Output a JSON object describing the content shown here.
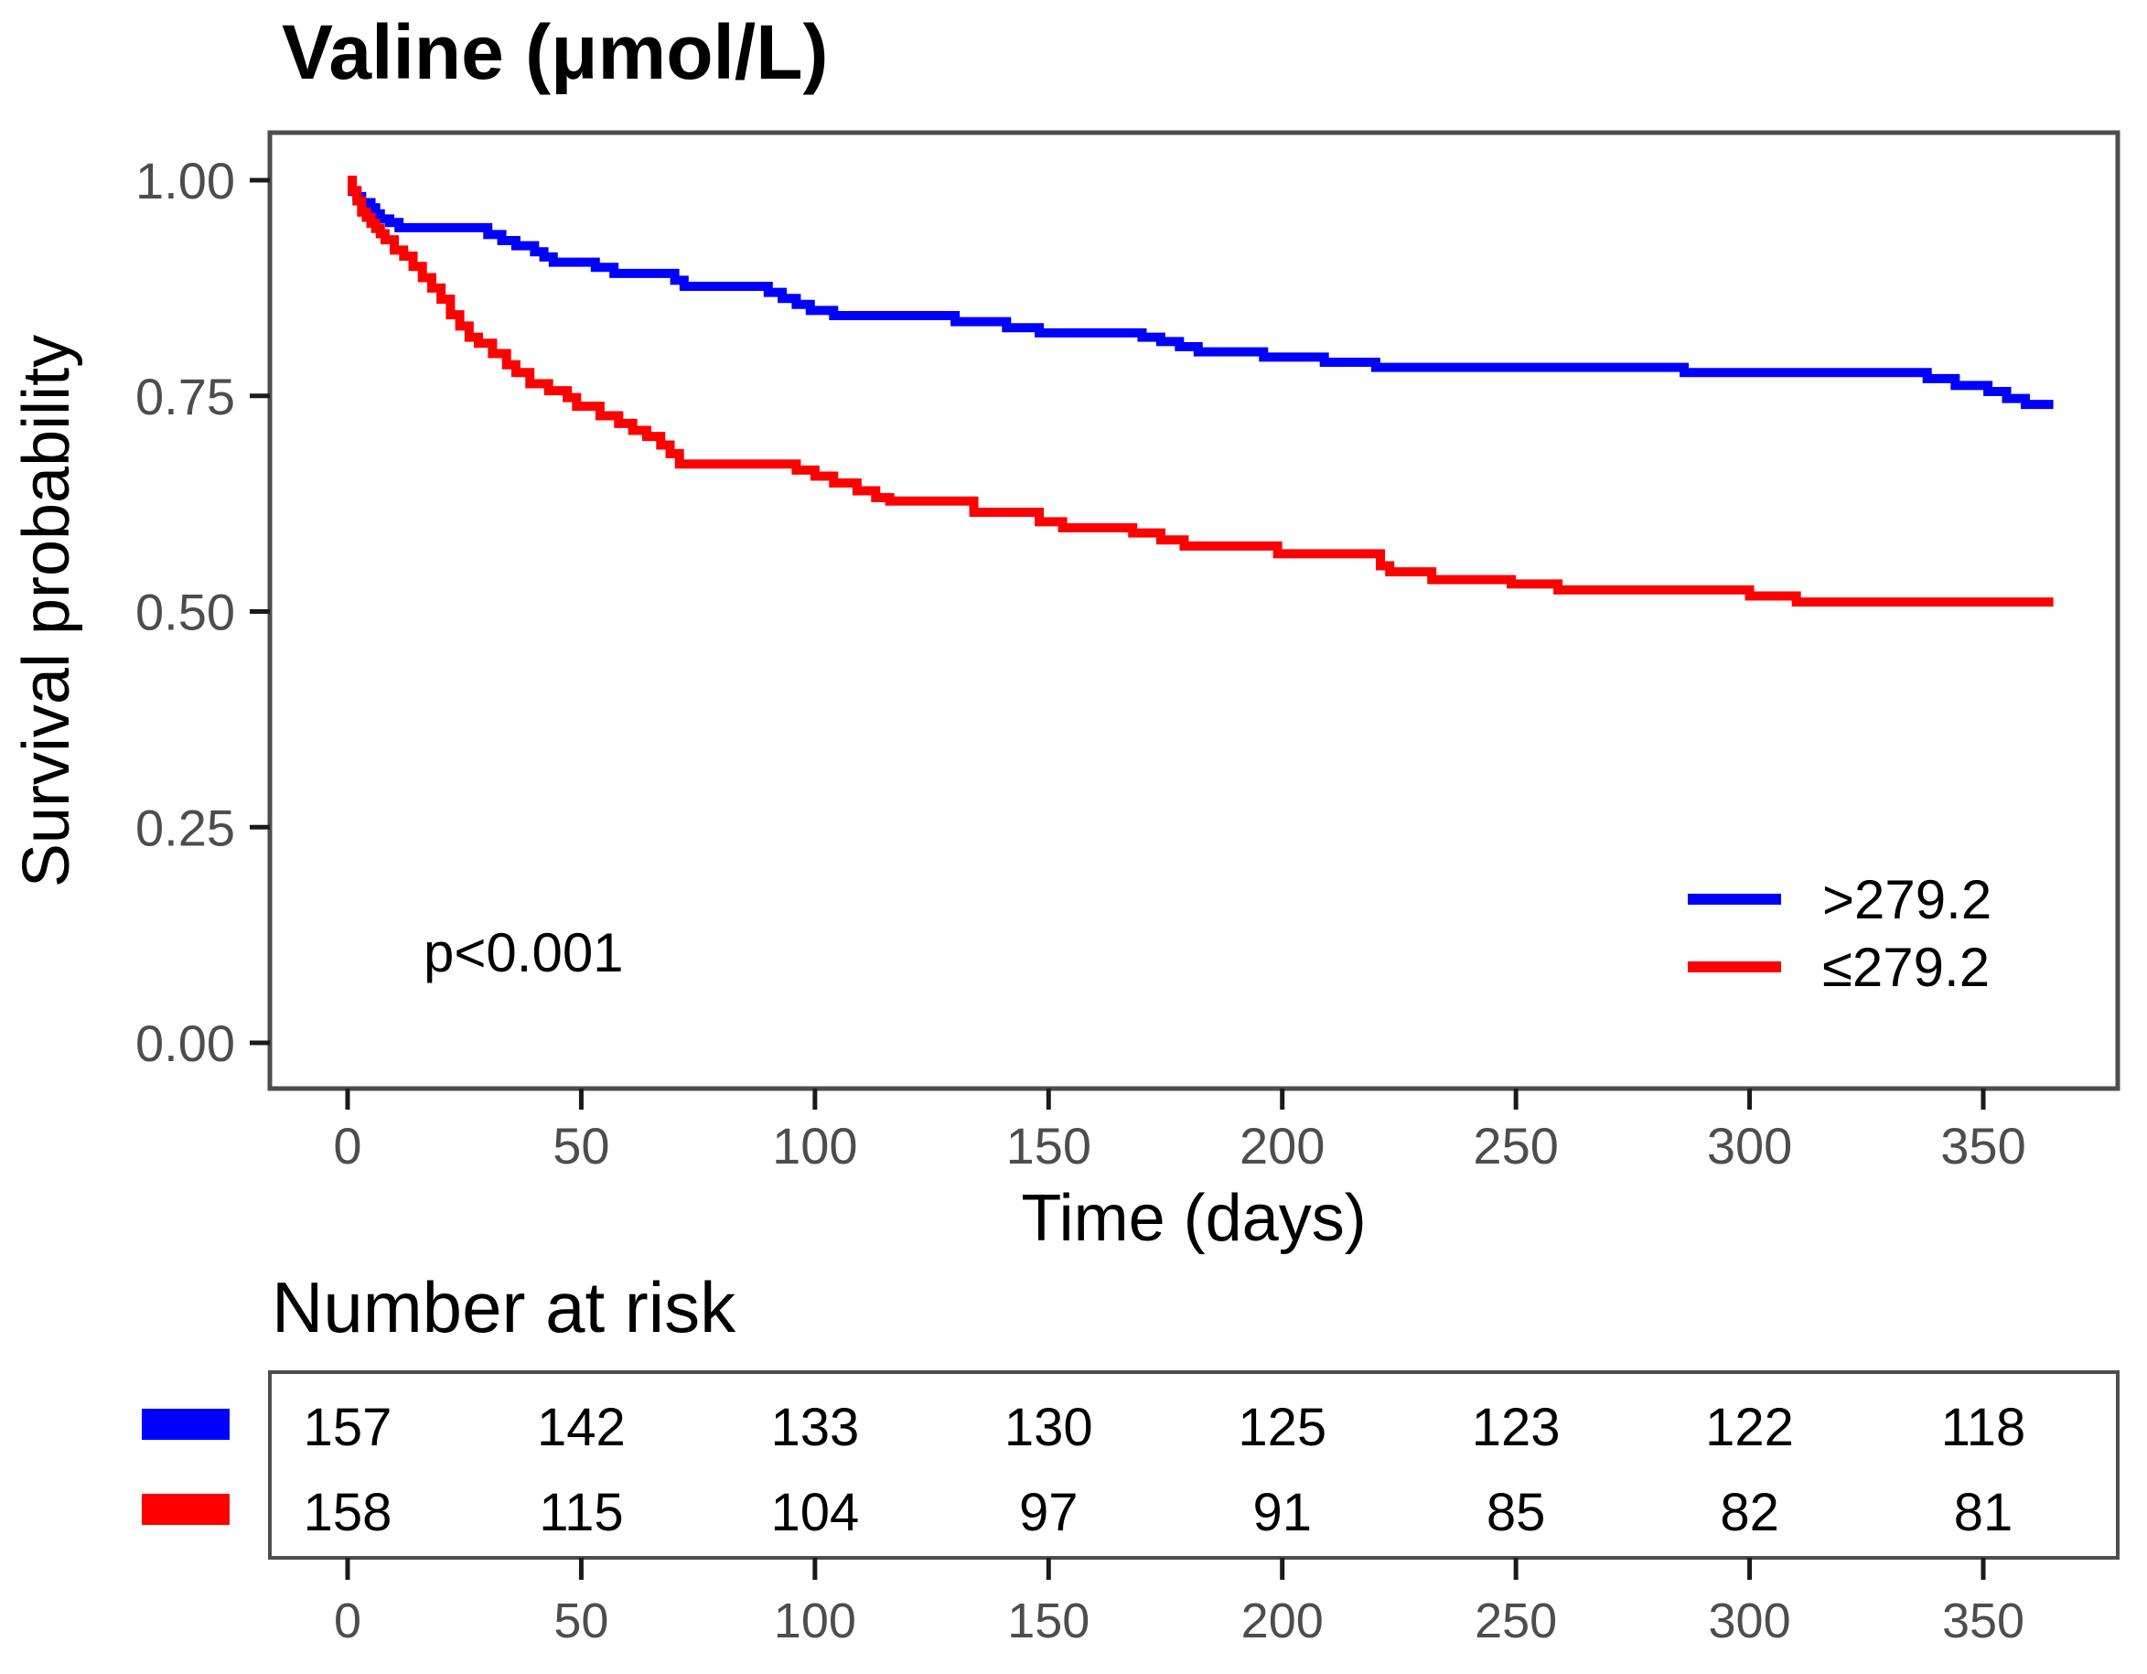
{
  "chart_data": {
    "type": "line",
    "subtype": "kaplan-meier-step",
    "title": "Valine (μmol/L)",
    "xlabel": "Time (days)",
    "ylabel": "Survival probability",
    "p_value": "p<0.001",
    "xlim": [
      0,
      365
    ],
    "ylim": [
      0,
      1
    ],
    "grid": false,
    "legend_position": "inside-right",
    "x_ticks": [
      {
        "label": "0",
        "value": 0
      },
      {
        "label": "50",
        "value": 50
      },
      {
        "label": "100",
        "value": 100
      },
      {
        "label": "150",
        "value": 150
      },
      {
        "label": "200",
        "value": 200
      },
      {
        "label": "250",
        "value": 250
      },
      {
        "label": "300",
        "value": 300
      },
      {
        "label": "350",
        "value": 350
      }
    ],
    "y_ticks": [
      {
        "label": "1.00",
        "value": 1.0
      },
      {
        "label": "0.75",
        "value": 0.75
      },
      {
        "label": "0.50",
        "value": 0.5
      },
      {
        "label": "0.25",
        "value": 0.25
      },
      {
        "label": "0.00",
        "value": 0.0
      }
    ],
    "series": [
      {
        "name": ">279.2",
        "color": "#0000FF",
        "points": [
          [
            0,
            1.0
          ],
          [
            1,
            0.987
          ],
          [
            2,
            0.981
          ],
          [
            3,
            0.974
          ],
          [
            5,
            0.968
          ],
          [
            6,
            0.961
          ],
          [
            7,
            0.955
          ],
          [
            9,
            0.951
          ],
          [
            11,
            0.945
          ],
          [
            30,
            0.937
          ],
          [
            33,
            0.93
          ],
          [
            36,
            0.924
          ],
          [
            40,
            0.917
          ],
          [
            42,
            0.911
          ],
          [
            44,
            0.905
          ],
          [
            53,
            0.899
          ],
          [
            57,
            0.892
          ],
          [
            70,
            0.884
          ],
          [
            72,
            0.877
          ],
          [
            90,
            0.87
          ],
          [
            93,
            0.863
          ],
          [
            96,
            0.856
          ],
          [
            99,
            0.849
          ],
          [
            104,
            0.843
          ],
          [
            130,
            0.836
          ],
          [
            141,
            0.829
          ],
          [
            148,
            0.823
          ],
          [
            170,
            0.818
          ],
          [
            174,
            0.813
          ],
          [
            178,
            0.807
          ],
          [
            182,
            0.801
          ],
          [
            196,
            0.795
          ],
          [
            209,
            0.789
          ],
          [
            220,
            0.783
          ],
          [
            286,
            0.777
          ],
          [
            338,
            0.77
          ],
          [
            344,
            0.762
          ],
          [
            351,
            0.755
          ],
          [
            355,
            0.747
          ],
          [
            359,
            0.74
          ],
          [
            365,
            0.74
          ]
        ]
      },
      {
        "name": "≤279.2",
        "color": "#FF0000",
        "points": [
          [
            0,
            1.0
          ],
          [
            1,
            0.988
          ],
          [
            2,
            0.976
          ],
          [
            3,
            0.963
          ],
          [
            4,
            0.957
          ],
          [
            5,
            0.95
          ],
          [
            6,
            0.944
          ],
          [
            7,
            0.938
          ],
          [
            8,
            0.931
          ],
          [
            10,
            0.919
          ],
          [
            12,
            0.912
          ],
          [
            14,
            0.9
          ],
          [
            16,
            0.887
          ],
          [
            18,
            0.875
          ],
          [
            20,
            0.862
          ],
          [
            22,
            0.844
          ],
          [
            24,
            0.831
          ],
          [
            26,
            0.818
          ],
          [
            28,
            0.811
          ],
          [
            31,
            0.799
          ],
          [
            34,
            0.786
          ],
          [
            36,
            0.777
          ],
          [
            39,
            0.764
          ],
          [
            43,
            0.756
          ],
          [
            47,
            0.748
          ],
          [
            49,
            0.738
          ],
          [
            54,
            0.727
          ],
          [
            58,
            0.718
          ],
          [
            61,
            0.71
          ],
          [
            64,
            0.703
          ],
          [
            67,
            0.693
          ],
          [
            69,
            0.683
          ],
          [
            71,
            0.671
          ],
          [
            96,
            0.664
          ],
          [
            100,
            0.657
          ],
          [
            104,
            0.649
          ],
          [
            109,
            0.64
          ],
          [
            113,
            0.632
          ],
          [
            116,
            0.628
          ],
          [
            134,
            0.615
          ],
          [
            148,
            0.604
          ],
          [
            153,
            0.597
          ],
          [
            168,
            0.591
          ],
          [
            174,
            0.583
          ],
          [
            179,
            0.576
          ],
          [
            199,
            0.567
          ],
          [
            221,
            0.553
          ],
          [
            223,
            0.546
          ],
          [
            232,
            0.537
          ],
          [
            249,
            0.532
          ],
          [
            259,
            0.525
          ],
          [
            300,
            0.518
          ],
          [
            310,
            0.511
          ],
          [
            365,
            0.511
          ]
        ]
      }
    ]
  },
  "risk_table": {
    "title": "Number at risk",
    "times": [
      0,
      50,
      100,
      150,
      200,
      250,
      300,
      350
    ],
    "rows": [
      {
        "group": ">279.2",
        "color": "#0000FF",
        "counts": [
          157,
          142,
          133,
          130,
          125,
          123,
          122,
          118
        ]
      },
      {
        "group": "≤279.2",
        "color": "#FF0000",
        "counts": [
          158,
          115,
          104,
          97,
          91,
          85,
          82,
          81
        ]
      }
    ]
  },
  "colors": {
    "blue_group": "#0000FF",
    "red_group": "#FF0000",
    "axis_text": "#4d4d4d",
    "panel_border": "#4d4d4d",
    "tick_mark": "#1a1a1a",
    "text": "#000000"
  }
}
